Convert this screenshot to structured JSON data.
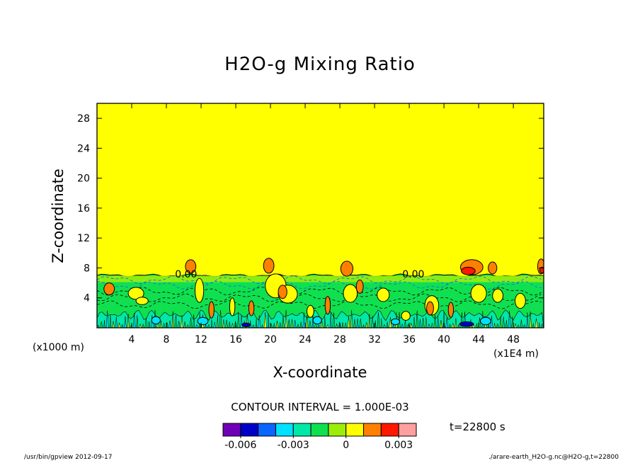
{
  "chart_data": {
    "type": "heatmap",
    "title": "H2O-g Mixing Ratio",
    "xlabel": "X-coordinate",
    "ylabel": "Z-coordinate",
    "x_unit_label": "(x1E4 m)",
    "y_unit_label": "(x1000 m)",
    "xlim": [
      0,
      51.5
    ],
    "ylim": [
      0,
      30
    ],
    "x_ticks": [
      4,
      8,
      12,
      16,
      20,
      24,
      28,
      32,
      36,
      40,
      44,
      48
    ],
    "y_ticks": [
      4,
      8,
      12,
      16,
      20,
      24,
      28
    ],
    "contour_interval_text": "CONTOUR INTERVAL = 1.000E-03",
    "contour_line_labels": [
      {
        "text": "0.00",
        "x": 9.0,
        "z": 6.7
      },
      {
        "text": "0.00",
        "x": 35.2,
        "z": 6.7
      }
    ],
    "boundary_layer_top_z": 7.0,
    "upper_region_value": 0.0005,
    "colorbar": {
      "levels": [
        -0.007,
        -0.006,
        -0.005,
        -0.004,
        -0.003,
        -0.002,
        -0.001,
        0,
        0.001,
        0.002,
        0.003,
        0.004
      ],
      "colors": [
        "#7000b8",
        "#0000c8",
        "#0a64ff",
        "#00e0ff",
        "#00e8a8",
        "#10e050",
        "#9bee0a",
        "#ffff00",
        "#ff8000",
        "#ff1800",
        "#ffa0a0"
      ],
      "tick_labels": [
        "-0.006",
        "-0.003",
        "0",
        "0.003"
      ],
      "tick_values": [
        -0.006,
        -0.003,
        0,
        0.003
      ]
    },
    "features": [
      {
        "kind": "orange",
        "x": 10.8,
        "z": 8.2,
        "rx": 0.6,
        "rz": 0.9
      },
      {
        "kind": "orange",
        "x": 19.8,
        "z": 8.3,
        "rx": 0.6,
        "rz": 1.0
      },
      {
        "kind": "orange",
        "x": 28.8,
        "z": 7.9,
        "rx": 0.7,
        "rz": 1.0
      },
      {
        "kind": "orange",
        "x": 43.2,
        "z": 8.1,
        "rx": 1.3,
        "rz": 1.0
      },
      {
        "kind": "red",
        "x": 42.8,
        "z": 7.6,
        "rx": 0.8,
        "rz": 0.5
      },
      {
        "kind": "orange",
        "x": 45.6,
        "z": 8.0,
        "rx": 0.5,
        "rz": 0.8
      },
      {
        "kind": "orange",
        "x": 51.2,
        "z": 8.2,
        "rx": 0.4,
        "rz": 1.0
      },
      {
        "kind": "red",
        "x": 51.3,
        "z": 7.7,
        "rx": 0.25,
        "rz": 0.4
      },
      {
        "kind": "yellow",
        "x": 4.5,
        "z": 4.6,
        "rx": 0.9,
        "rz": 0.8
      },
      {
        "kind": "yellow",
        "x": 5.2,
        "z": 3.6,
        "rx": 0.7,
        "rz": 0.5
      },
      {
        "kind": "yellow",
        "x": 11.8,
        "z": 5.0,
        "rx": 0.5,
        "rz": 1.6
      },
      {
        "kind": "yellow",
        "x": 20.6,
        "z": 5.6,
        "rx": 1.2,
        "rz": 1.6
      },
      {
        "kind": "yellow",
        "x": 22.0,
        "z": 4.5,
        "rx": 1.1,
        "rz": 1.2
      },
      {
        "kind": "orange",
        "x": 21.4,
        "z": 4.8,
        "rx": 0.5,
        "rz": 0.9
      },
      {
        "kind": "yellow",
        "x": 29.2,
        "z": 4.6,
        "rx": 0.8,
        "rz": 1.2
      },
      {
        "kind": "orange",
        "x": 30.3,
        "z": 5.5,
        "rx": 0.4,
        "rz": 0.9
      },
      {
        "kind": "yellow",
        "x": 33.0,
        "z": 4.4,
        "rx": 0.7,
        "rz": 0.9
      },
      {
        "kind": "yellow",
        "x": 38.6,
        "z": 3.0,
        "rx": 0.8,
        "rz": 1.3
      },
      {
        "kind": "orange",
        "x": 38.4,
        "z": 2.6,
        "rx": 0.4,
        "rz": 0.9
      },
      {
        "kind": "yellow",
        "x": 44.0,
        "z": 4.6,
        "rx": 0.9,
        "rz": 1.2
      },
      {
        "kind": "yellow",
        "x": 46.2,
        "z": 4.3,
        "rx": 0.6,
        "rz": 0.9
      },
      {
        "kind": "yellow",
        "x": 48.8,
        "z": 3.6,
        "rx": 0.6,
        "rz": 1.0
      },
      {
        "kind": "orange",
        "x": 1.4,
        "z": 5.2,
        "rx": 0.6,
        "rz": 0.8
      },
      {
        "kind": "orange",
        "x": 13.2,
        "z": 2.4,
        "rx": 0.3,
        "rz": 1.1
      },
      {
        "kind": "orange",
        "x": 17.8,
        "z": 2.6,
        "rx": 0.3,
        "rz": 1.0
      },
      {
        "kind": "orange",
        "x": 26.6,
        "z": 3.0,
        "rx": 0.3,
        "rz": 1.2
      },
      {
        "kind": "orange",
        "x": 40.8,
        "z": 2.4,
        "rx": 0.3,
        "rz": 1.0
      },
      {
        "kind": "yellow",
        "x": 15.6,
        "z": 2.8,
        "rx": 0.3,
        "rz": 1.2
      },
      {
        "kind": "yellow",
        "x": 24.6,
        "z": 2.2,
        "rx": 0.4,
        "rz": 0.8
      },
      {
        "kind": "yellow",
        "x": 35.6,
        "z": 1.6,
        "rx": 0.5,
        "rz": 0.6
      },
      {
        "kind": "cyan",
        "x": 6.8,
        "z": 1.0,
        "rx": 0.5,
        "rz": 0.5
      },
      {
        "kind": "cyan",
        "x": 12.2,
        "z": 0.9,
        "rx": 0.6,
        "rz": 0.5
      },
      {
        "kind": "cyan",
        "x": 25.4,
        "z": 1.0,
        "rx": 0.5,
        "rz": 0.5
      },
      {
        "kind": "cyan",
        "x": 34.4,
        "z": 0.8,
        "rx": 0.5,
        "rz": 0.4
      },
      {
        "kind": "cyan",
        "x": 44.8,
        "z": 0.9,
        "rx": 0.6,
        "rz": 0.5
      },
      {
        "kind": "blue",
        "x": 42.6,
        "z": 0.5,
        "rx": 0.8,
        "rz": 0.3
      },
      {
        "kind": "blue",
        "x": 17.2,
        "z": 0.4,
        "rx": 0.5,
        "rz": 0.25
      }
    ]
  },
  "time_label": "t=22800 s",
  "footer_left": "/usr/bin/gpview  2012-09-17",
  "footer_right": "./arare-earth_H2O-g.nc@H2O-g,t=22800"
}
